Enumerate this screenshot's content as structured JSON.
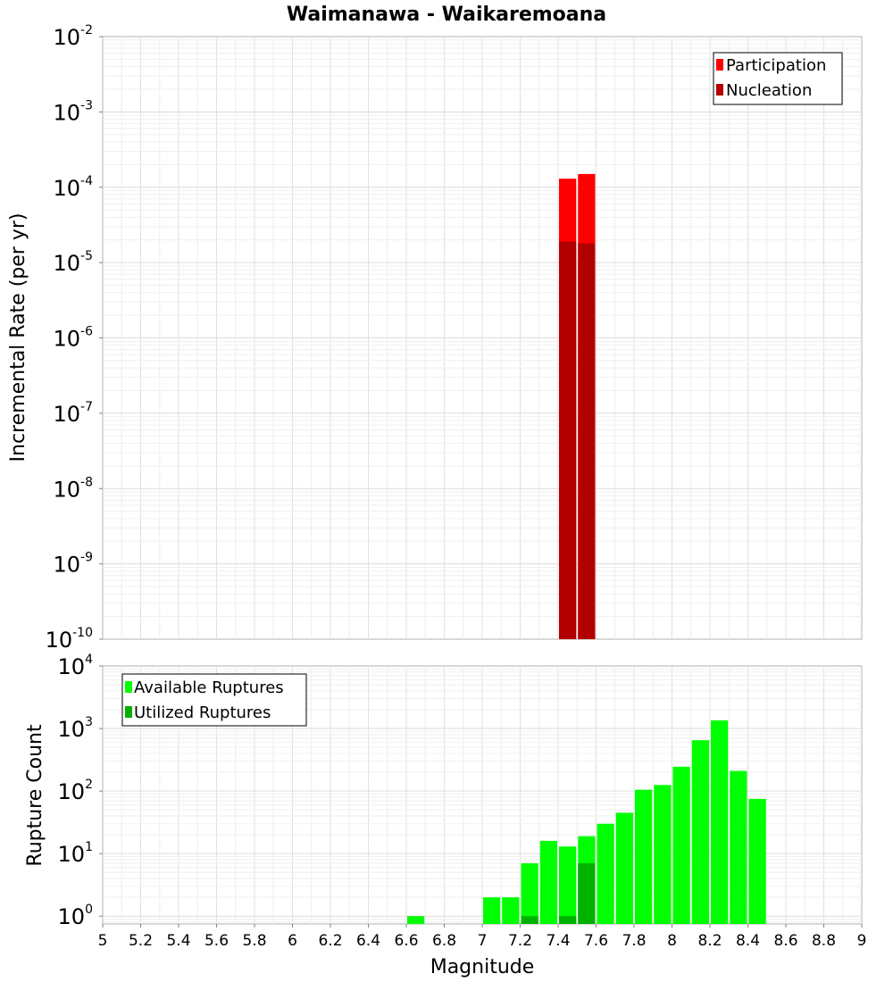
{
  "chart_data": [
    {
      "type": "bar",
      "title": "Waimanawa - Waikaremoana",
      "ylabel": "Incremental Rate (per yr)",
      "xlabel": "",
      "xlim": [
        5,
        9
      ],
      "ylim": [
        1e-10,
        0.01
      ],
      "yscale": "log",
      "bar_width": 0.1,
      "grid": true,
      "legend_position": "top-right",
      "series": [
        {
          "name": "Participation",
          "color": "#ff0000",
          "x": [
            7.45,
            7.55
          ],
          "values": [
            0.00013,
            0.00015
          ]
        },
        {
          "name": "Nucleation",
          "color": "#b20000",
          "x": [
            7.45,
            7.55
          ],
          "values": [
            1.9e-05,
            1.8e-05
          ]
        }
      ]
    },
    {
      "type": "bar",
      "title": "",
      "ylabel": "Rupture Count",
      "xlabel": "Magnitude",
      "xlim": [
        5,
        9
      ],
      "ylim": [
        0.75,
        10000
      ],
      "yscale": "log",
      "bar_width": 0.1,
      "grid": true,
      "legend_position": "top-left",
      "xticks": [
        "5",
        "5.2",
        "5.4",
        "5.6",
        "5.8",
        "6",
        "6.2",
        "6.4",
        "6.6",
        "6.8",
        "7",
        "7.2",
        "7.4",
        "7.6",
        "7.8",
        "8",
        "8.2",
        "8.4",
        "8.6",
        "8.8",
        "9"
      ],
      "series": [
        {
          "name": "Available Ruptures",
          "color": "#00ff00",
          "x": [
            6.65,
            7.05,
            7.15,
            7.25,
            7.35,
            7.45,
            7.55,
            7.65,
            7.75,
            7.85,
            7.95,
            8.05,
            8.15,
            8.25,
            8.35,
            8.45
          ],
          "values": [
            1,
            2,
            2,
            7,
            16,
            13,
            19,
            30,
            45,
            105,
            125,
            245,
            650,
            1350,
            210,
            75
          ]
        },
        {
          "name": "Utilized Ruptures",
          "color": "#00b200",
          "x": [
            7.25,
            7.45,
            7.55
          ],
          "values": [
            1,
            1,
            7
          ]
        }
      ]
    }
  ]
}
